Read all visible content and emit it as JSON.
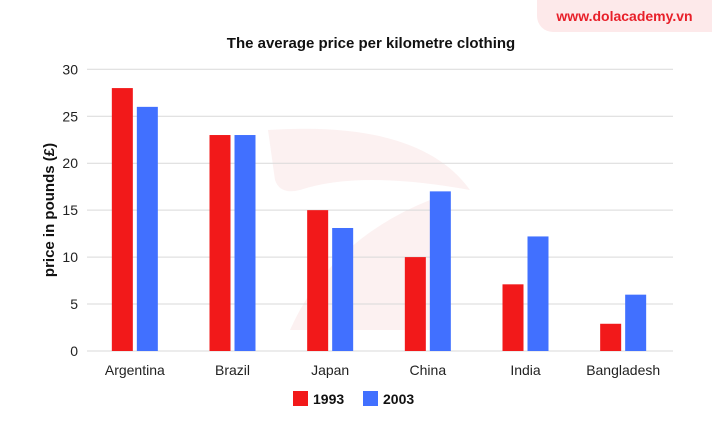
{
  "brand": "www.dolacademy.vn",
  "chart_data": {
    "type": "bar",
    "title": "The average price per kilometre clothing",
    "xlabel": "",
    "ylabel": "price in pounds (£)",
    "ylim": [
      0,
      30
    ],
    "yticks": [
      0,
      5,
      10,
      15,
      20,
      25,
      30
    ],
    "grid": true,
    "legend": "bottom",
    "categories": [
      "Argentina",
      "Brazil",
      "Japan",
      "China",
      "India",
      "Bangladesh"
    ],
    "series": [
      {
        "name": "1993",
        "color": "#f2191a",
        "values": [
          28,
          23,
          15,
          10,
          7.1,
          2.9
        ]
      },
      {
        "name": "2003",
        "color": "#4170ff",
        "values": [
          26,
          23,
          13.1,
          17,
          12.2,
          6
        ]
      }
    ]
  }
}
